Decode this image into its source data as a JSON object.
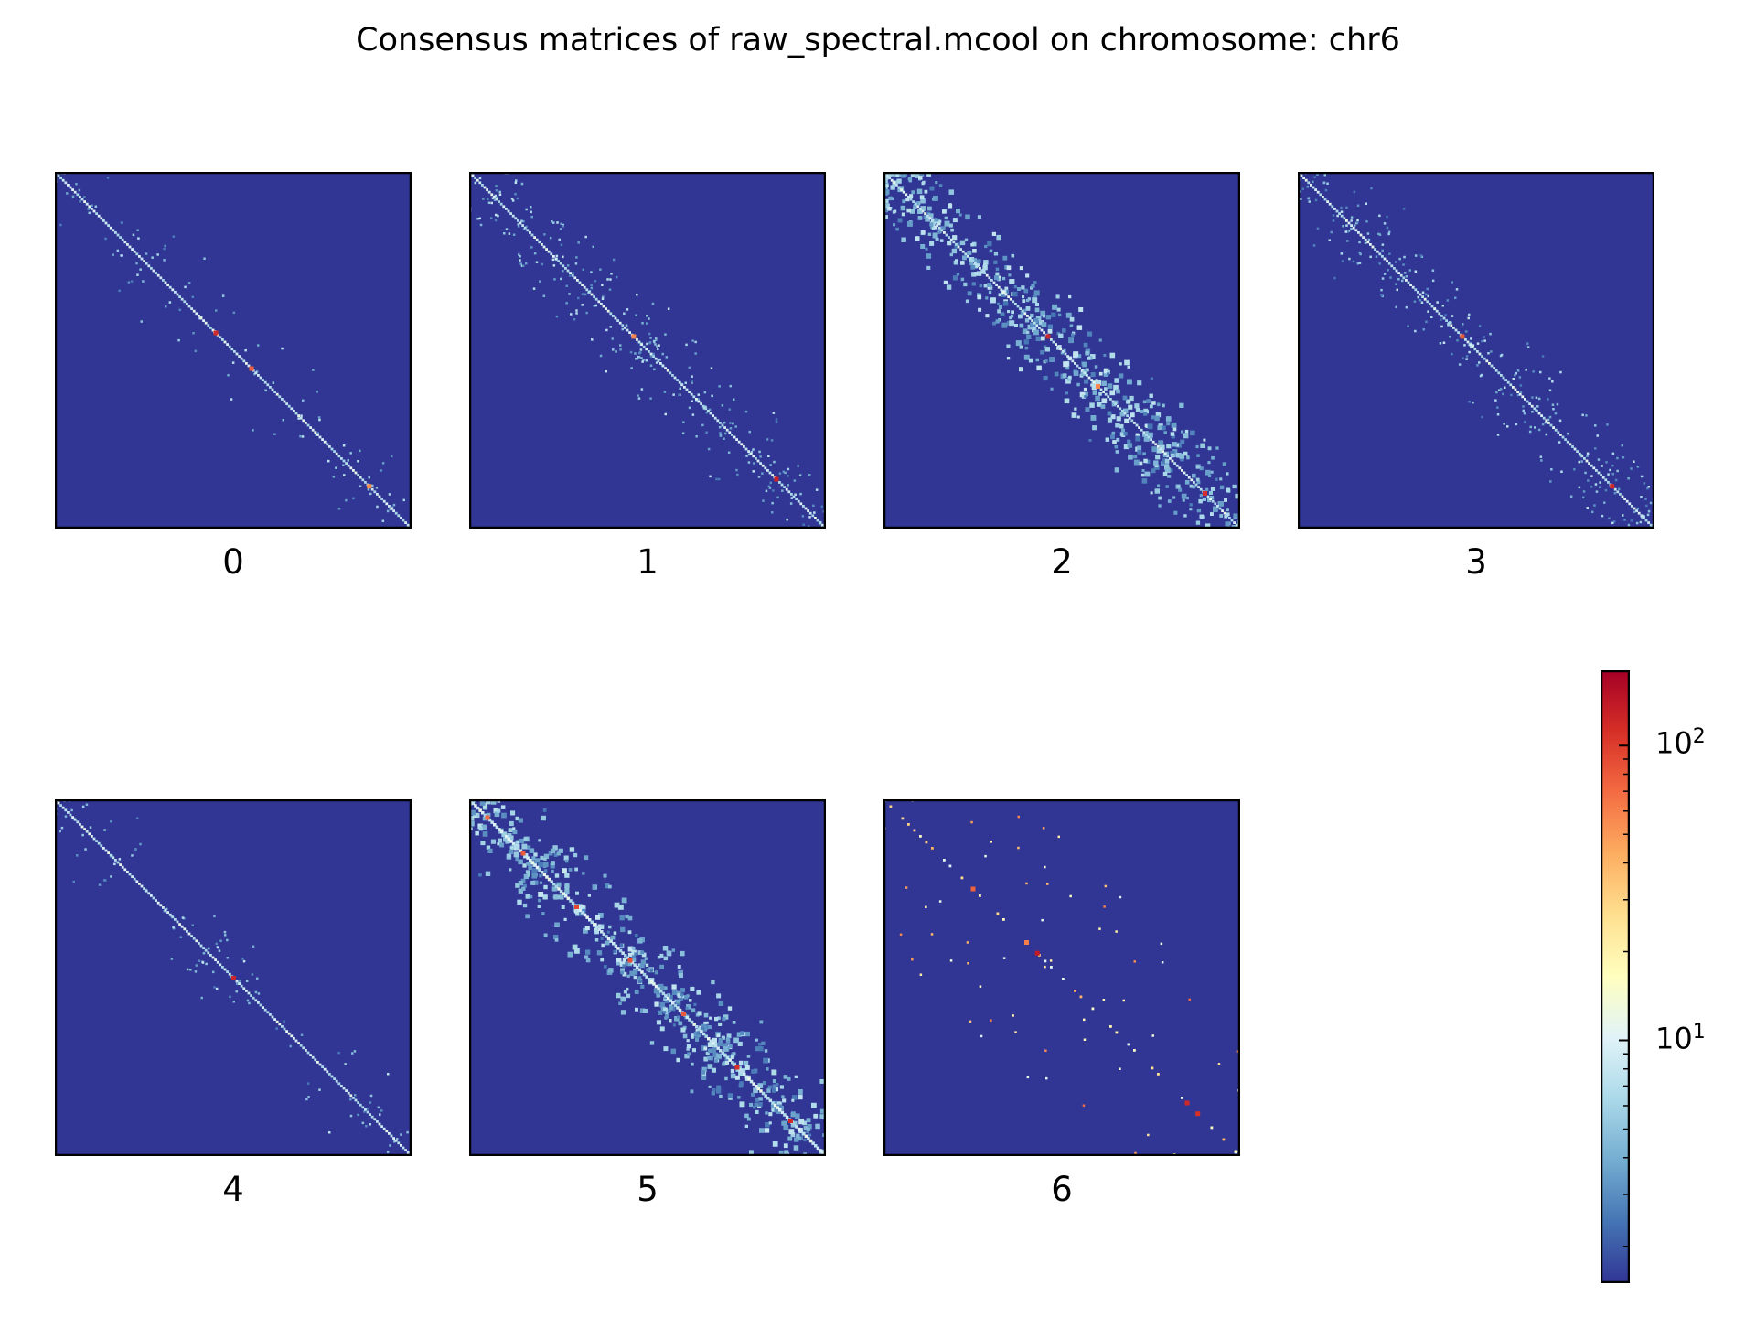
{
  "title": "Consensus matrices of raw_spectral.mcool on chromosome: chr6",
  "chart_data": {
    "type": "heatmap",
    "title": "Consensus matrices of raw_spectral.mcool on chromosome: chr6",
    "chromosome": "chr6",
    "panels": [
      {
        "label": "0",
        "pattern": "diagonal-dense",
        "off_diagonal_noise": "low",
        "hotspots": [
          0.45,
          0.55,
          0.88
        ]
      },
      {
        "label": "1",
        "pattern": "diagonal-dense",
        "off_diagonal_noise": "moderate",
        "hotspots": [
          0.46,
          0.86
        ]
      },
      {
        "label": "2",
        "pattern": "diagonal-dense",
        "off_diagonal_noise": "high",
        "hotspots": [
          0.46,
          0.9,
          0.6
        ]
      },
      {
        "label": "3",
        "pattern": "diagonal-dense",
        "off_diagonal_noise": "moderate",
        "hotspots": [
          0.46,
          0.88
        ]
      },
      {
        "label": "4",
        "pattern": "diagonal-dense",
        "off_diagonal_noise": "low",
        "hotspots": [
          0.5
        ]
      },
      {
        "label": "5",
        "pattern": "diagonal-blocky",
        "off_diagonal_noise": "high",
        "hotspots": [
          0.05,
          0.15,
          0.3,
          0.45,
          0.6,
          0.75,
          0.9
        ]
      },
      {
        "label": "6",
        "pattern": "diagonal-sparse",
        "off_diagonal_noise": "sparse",
        "hotspots": [
          0.25,
          0.4,
          0.43,
          0.85,
          0.88
        ]
      }
    ],
    "colormap": "RdYlBu_r",
    "colorbar": {
      "scale": "log",
      "range": [
        1.5,
        180
      ],
      "ticks": [
        {
          "base": "10",
          "exp": "1",
          "value": 10
        },
        {
          "base": "10",
          "exp": "2",
          "value": 100
        }
      ]
    }
  },
  "colors": {
    "background_matrix": "#313695",
    "diagonal": "#abd9e9",
    "hot": "#d73027",
    "frame": "#000000"
  }
}
